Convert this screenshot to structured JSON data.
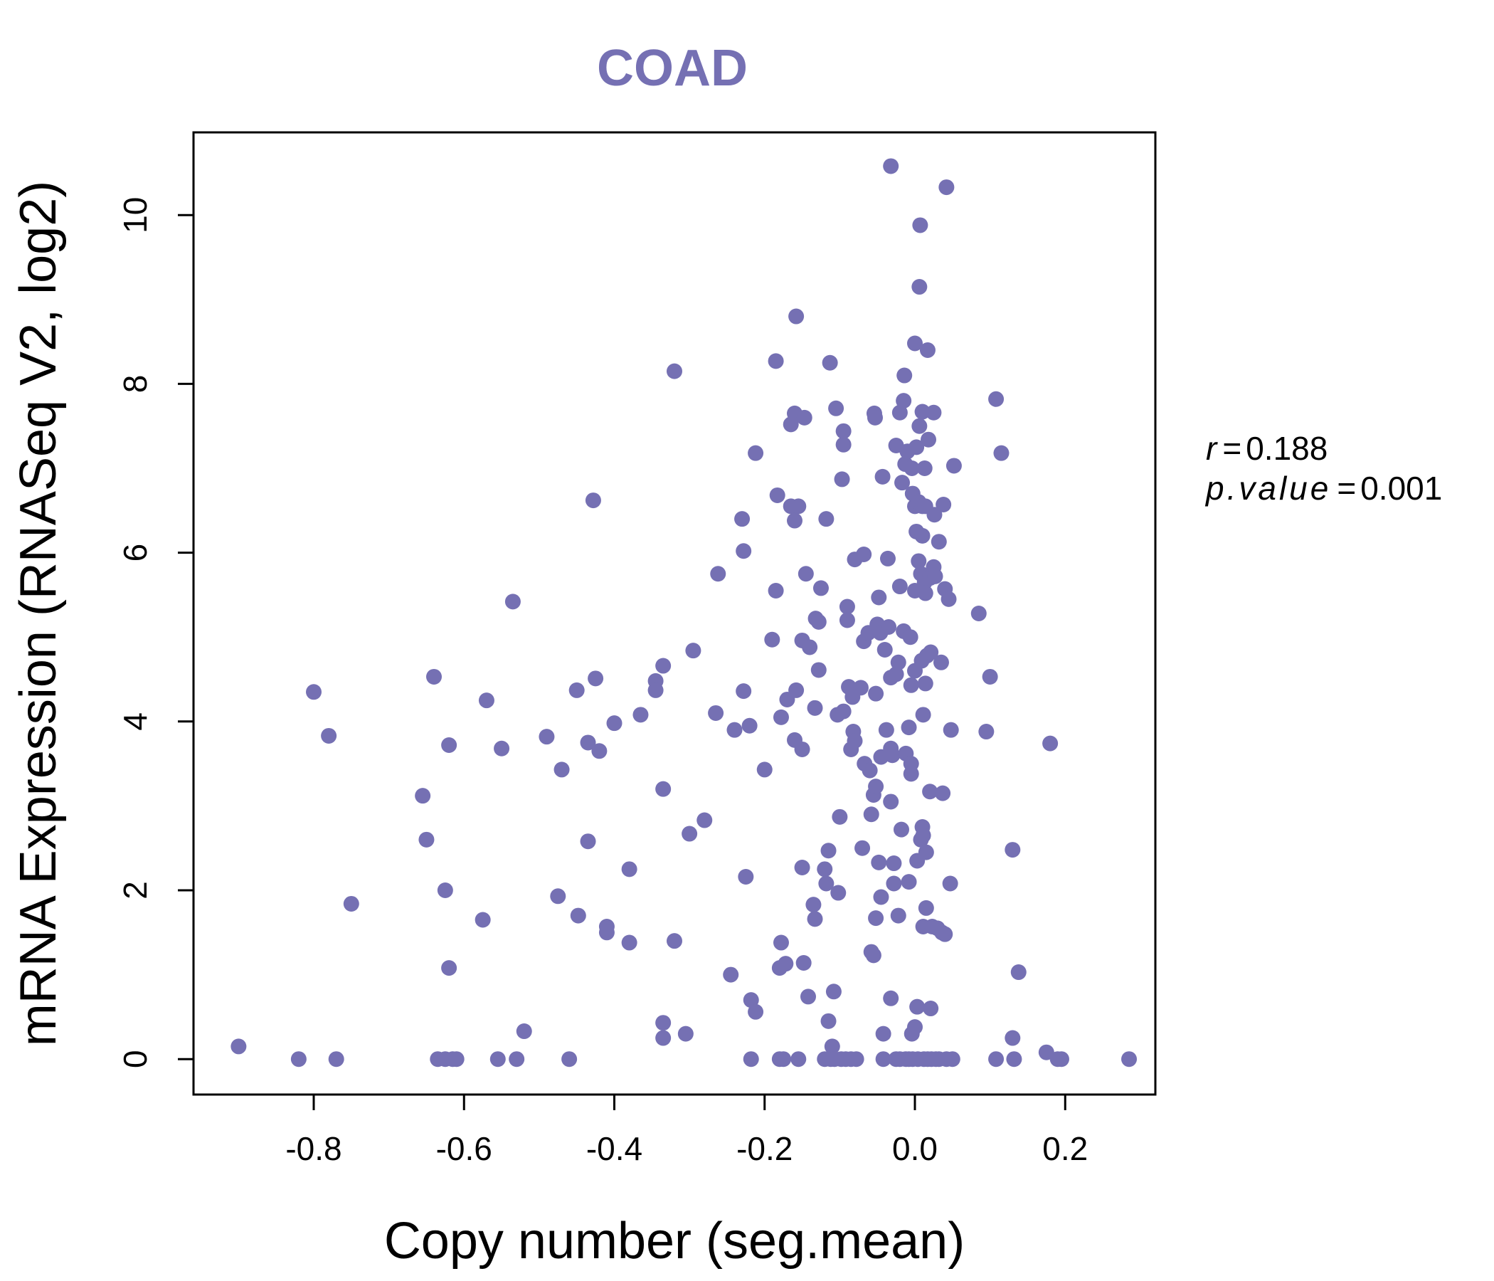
{
  "colors": {
    "accent": "#7570b3",
    "axis": "#000000"
  },
  "chart_data": {
    "type": "scatter",
    "title": "COAD",
    "xlabel": "Copy number (seg.mean)",
    "ylabel": "mRNA Expression (RNASeq V2, log2)",
    "xlim": [
      -0.96,
      0.32
    ],
    "ylim": [
      -0.42,
      10.98
    ],
    "xticks": [
      -0.8,
      -0.6,
      -0.4,
      -0.2,
      0.0,
      0.2
    ],
    "xtick_labels": [
      "-0.8",
      "-0.6",
      "-0.4",
      "-0.2",
      "0.0",
      "0.2"
    ],
    "yticks": [
      0,
      2,
      4,
      6,
      8,
      10
    ],
    "ytick_labels": [
      "0",
      "2",
      "4",
      "6",
      "8",
      "10"
    ],
    "stats": {
      "r_label": "r",
      "r_value": "0.188",
      "p_label": "p.value",
      "p_value": "0.001"
    },
    "points": [
      [
        -0.9,
        0.15
      ],
      [
        -0.82,
        0
      ],
      [
        -0.77,
        0
      ],
      [
        -0.8,
        4.35
      ],
      [
        -0.78,
        3.83
      ],
      [
        -0.75,
        1.84
      ],
      [
        -0.655,
        3.12
      ],
      [
        -0.65,
        2.6
      ],
      [
        -0.64,
        4.53
      ],
      [
        -0.635,
        0
      ],
      [
        -0.625,
        0
      ],
      [
        -0.615,
        0
      ],
      [
        -0.625,
        2.0
      ],
      [
        -0.62,
        3.72
      ],
      [
        -0.62,
        1.08
      ],
      [
        -0.61,
        0
      ],
      [
        -0.575,
        1.65
      ],
      [
        -0.57,
        4.25
      ],
      [
        -0.55,
        3.68
      ],
      [
        -0.555,
        0
      ],
      [
        -0.535,
        5.42
      ],
      [
        -0.53,
        0
      ],
      [
        -0.52,
        0.33
      ],
      [
        -0.49,
        3.82
      ],
      [
        -0.475,
        1.93
      ],
      [
        -0.47,
        3.43
      ],
      [
        -0.46,
        0
      ],
      [
        -0.45,
        4.37
      ],
      [
        -0.448,
        1.7
      ],
      [
        -0.435,
        3.75
      ],
      [
        -0.435,
        2.58
      ],
      [
        -0.428,
        6.62
      ],
      [
        -0.425,
        4.51
      ],
      [
        -0.42,
        3.65
      ],
      [
        -0.41,
        1.57
      ],
      [
        -0.41,
        1.5
      ],
      [
        -0.4,
        3.98
      ],
      [
        -0.38,
        2.25
      ],
      [
        -0.38,
        1.38
      ],
      [
        -0.365,
        4.08
      ],
      [
        -0.345,
        4.48
      ],
      [
        -0.345,
        4.37
      ],
      [
        -0.335,
        4.66
      ],
      [
        -0.335,
        3.2
      ],
      [
        -0.335,
        0.43
      ],
      [
        -0.335,
        0.25
      ],
      [
        -0.32,
        8.15
      ],
      [
        -0.32,
        1.4
      ],
      [
        -0.305,
        0.3
      ],
      [
        -0.3,
        2.67
      ],
      [
        -0.295,
        4.84
      ],
      [
        -0.28,
        2.83
      ],
      [
        -0.265,
        4.1
      ],
      [
        -0.262,
        5.75
      ],
      [
        -0.245,
        1.0
      ],
      [
        -0.24,
        3.9
      ],
      [
        -0.23,
        6.4
      ],
      [
        -0.228,
        6.02
      ],
      [
        -0.228,
        4.36
      ],
      [
        -0.225,
        2.16
      ],
      [
        -0.22,
        3.95
      ],
      [
        -0.218,
        0.7
      ],
      [
        -0.218,
        0
      ],
      [
        -0.212,
        0.56
      ],
      [
        -0.212,
        7.18
      ],
      [
        -0.2,
        3.43
      ],
      [
        -0.19,
        4.97
      ],
      [
        -0.185,
        5.55
      ],
      [
        -0.185,
        8.27
      ],
      [
        -0.183,
        6.68
      ],
      [
        -0.18,
        0
      ],
      [
        -0.18,
        1.08
      ],
      [
        -0.178,
        4.05
      ],
      [
        -0.178,
        1.38
      ],
      [
        -0.175,
        0
      ],
      [
        -0.172,
        1.13
      ],
      [
        -0.17,
        4.26
      ],
      [
        -0.165,
        7.52
      ],
      [
        -0.165,
        6.55
      ],
      [
        -0.16,
        7.65
      ],
      [
        -0.16,
        6.38
      ],
      [
        -0.16,
        3.78
      ],
      [
        -0.158,
        4.37
      ],
      [
        -0.158,
        8.8
      ],
      [
        -0.155,
        6.55
      ],
      [
        -0.155,
        0
      ],
      [
        -0.15,
        4.96
      ],
      [
        -0.15,
        3.67
      ],
      [
        -0.15,
        2.27
      ],
      [
        -0.148,
        1.14
      ],
      [
        -0.147,
        7.6
      ],
      [
        -0.145,
        5.75
      ],
      [
        -0.142,
        0.74
      ],
      [
        -0.14,
        4.88
      ],
      [
        -0.135,
        1.83
      ],
      [
        -0.133,
        4.16
      ],
      [
        -0.133,
        1.66
      ],
      [
        -0.132,
        5.22
      ],
      [
        -0.128,
        5.18
      ],
      [
        -0.128,
        4.61
      ],
      [
        -0.125,
        5.58
      ],
      [
        -0.12,
        0
      ],
      [
        -0.12,
        2.25
      ],
      [
        -0.118,
        2.08
      ],
      [
        -0.118,
        6.4
      ],
      [
        -0.115,
        2.47
      ],
      [
        -0.115,
        0.45
      ],
      [
        -0.113,
        8.25
      ],
      [
        -0.112,
        0
      ],
      [
        -0.11,
        0.15
      ],
      [
        -0.108,
        0.8
      ],
      [
        -0.107,
        0
      ],
      [
        -0.105,
        7.71
      ],
      [
        -0.103,
        4.08
      ],
      [
        -0.102,
        1.97
      ],
      [
        -0.1,
        2.87
      ],
      [
        -0.098,
        0
      ],
      [
        -0.097,
        6.87
      ],
      [
        -0.095,
        7.28
      ],
      [
        -0.095,
        7.44
      ],
      [
        -0.095,
        4.12
      ],
      [
        -0.092,
        0
      ],
      [
        -0.09,
        5.36
      ],
      [
        -0.09,
        5.2
      ],
      [
        -0.088,
        4.41
      ],
      [
        -0.085,
        3.67
      ],
      [
        -0.085,
        0
      ],
      [
        -0.083,
        4.29
      ],
      [
        -0.082,
        3.88
      ],
      [
        -0.08,
        5.92
      ],
      [
        -0.08,
        3.77
      ],
      [
        -0.078,
        0
      ],
      [
        -0.072,
        4.4
      ],
      [
        -0.07,
        2.5
      ],
      [
        -0.068,
        5.98
      ],
      [
        -0.068,
        4.95
      ],
      [
        -0.067,
        3.5
      ],
      [
        -0.062,
        5.05
      ],
      [
        -0.06,
        3.42
      ],
      [
        -0.058,
        2.9
      ],
      [
        -0.058,
        1.27
      ],
      [
        -0.055,
        3.13
      ],
      [
        -0.055,
        1.23
      ],
      [
        -0.054,
        7.65
      ],
      [
        -0.053,
        7.6
      ],
      [
        -0.052,
        4.33
      ],
      [
        -0.052,
        3.23
      ],
      [
        -0.052,
        1.67
      ],
      [
        -0.05,
        5.15
      ],
      [
        -0.048,
        5.47
      ],
      [
        -0.048,
        2.33
      ],
      [
        -0.046,
        5.05
      ],
      [
        -0.045,
        3.58
      ],
      [
        -0.045,
        1.92
      ],
      [
        -0.043,
        6.9
      ],
      [
        -0.042,
        0.3
      ],
      [
        -0.042,
        0
      ],
      [
        -0.04,
        4.85
      ],
      [
        -0.038,
        3.9
      ],
      [
        -0.036,
        5.93
      ],
      [
        -0.035,
        5.12
      ],
      [
        -0.032,
        10.58
      ],
      [
        -0.032,
        4.52
      ],
      [
        -0.032,
        3.68
      ],
      [
        -0.032,
        3.05
      ],
      [
        -0.032,
        0.72
      ],
      [
        -0.03,
        3.6
      ],
      [
        -0.028,
        2.32
      ],
      [
        -0.028,
        2.08
      ],
      [
        -0.025,
        7.27
      ],
      [
        -0.025,
        4.56
      ],
      [
        -0.025,
        0
      ],
      [
        -0.022,
        4.7
      ],
      [
        -0.022,
        1.7
      ],
      [
        -0.02,
        7.66
      ],
      [
        -0.02,
        5.6
      ],
      [
        -0.02,
        0
      ],
      [
        -0.018,
        2.72
      ],
      [
        -0.017,
        6.83
      ],
      [
        -0.015,
        5.07
      ],
      [
        -0.015,
        7.8
      ],
      [
        -0.014,
        8.1
      ],
      [
        -0.013,
        7.05
      ],
      [
        -0.012,
        3.62
      ],
      [
        -0.012,
        0
      ],
      [
        -0.01,
        7.2
      ],
      [
        -0.008,
        3.93
      ],
      [
        -0.008,
        2.1
      ],
      [
        -0.008,
        0
      ],
      [
        -0.006,
        5.0
      ],
      [
        -0.005,
        4.43
      ],
      [
        -0.005,
        3.5
      ],
      [
        -0.005,
        3.38
      ],
      [
        -0.004,
        7.0
      ],
      [
        -0.004,
        0.3
      ],
      [
        -0.003,
        6.7
      ],
      [
        -0.003,
        0
      ],
      [
        0.0,
        6.55
      ],
      [
        0.0,
        5.55
      ],
      [
        0.0,
        4.6
      ],
      [
        0.0,
        0.38
      ],
      [
        0.0,
        8.48
      ],
      [
        0.002,
        6.25
      ],
      [
        0.002,
        7.25
      ],
      [
        0.003,
        2.35
      ],
      [
        0.003,
        0.62
      ],
      [
        0.004,
        0
      ],
      [
        0.005,
        5.9
      ],
      [
        0.005,
        6.6
      ],
      [
        0.006,
        9.15
      ],
      [
        0.006,
        7.5
      ],
      [
        0.007,
        9.88
      ],
      [
        0.008,
        5.75
      ],
      [
        0.008,
        2.6
      ],
      [
        0.009,
        4.72
      ],
      [
        0.01,
        6.55
      ],
      [
        0.01,
        6.2
      ],
      [
        0.01,
        7.67
      ],
      [
        0.01,
        2.75
      ],
      [
        0.011,
        4.08
      ],
      [
        0.011,
        2.65
      ],
      [
        0.011,
        1.57
      ],
      [
        0.012,
        0
      ],
      [
        0.013,
        7.0
      ],
      [
        0.013,
        5.65
      ],
      [
        0.014,
        6.55
      ],
      [
        0.014,
        5.52
      ],
      [
        0.014,
        4.45
      ],
      [
        0.015,
        2.45
      ],
      [
        0.015,
        1.79
      ],
      [
        0.016,
        4.78
      ],
      [
        0.017,
        8.4
      ],
      [
        0.017,
        0
      ],
      [
        0.018,
        7.34
      ],
      [
        0.02,
        5.7
      ],
      [
        0.02,
        3.17
      ],
      [
        0.021,
        4.82
      ],
      [
        0.021,
        0.6
      ],
      [
        0.022,
        0
      ],
      [
        0.023,
        1.57
      ],
      [
        0.025,
        7.66
      ],
      [
        0.025,
        5.83
      ],
      [
        0.026,
        6.45
      ],
      [
        0.027,
        5.72
      ],
      [
        0.028,
        0
      ],
      [
        0.03,
        1.55
      ],
      [
        0.032,
        6.13
      ],
      [
        0.032,
        0
      ],
      [
        0.035,
        4.7
      ],
      [
        0.036,
        1.5
      ],
      [
        0.037,
        3.15
      ],
      [
        0.038,
        6.57
      ],
      [
        0.04,
        5.57
      ],
      [
        0.04,
        1.48
      ],
      [
        0.042,
        10.33
      ],
      [
        0.042,
        0
      ],
      [
        0.045,
        5.45
      ],
      [
        0.047,
        2.08
      ],
      [
        0.048,
        3.9
      ],
      [
        0.05,
        0
      ],
      [
        0.052,
        7.03
      ],
      [
        0.085,
        5.28
      ],
      [
        0.095,
        3.88
      ],
      [
        0.1,
        4.53
      ],
      [
        0.108,
        0
      ],
      [
        0.108,
        7.82
      ],
      [
        0.115,
        7.18
      ],
      [
        0.13,
        2.48
      ],
      [
        0.13,
        0.25
      ],
      [
        0.132,
        0
      ],
      [
        0.138,
        1.03
      ],
      [
        0.175,
        0.08
      ],
      [
        0.18,
        3.74
      ],
      [
        0.19,
        0
      ],
      [
        0.195,
        0
      ],
      [
        0.285,
        0
      ]
    ]
  }
}
